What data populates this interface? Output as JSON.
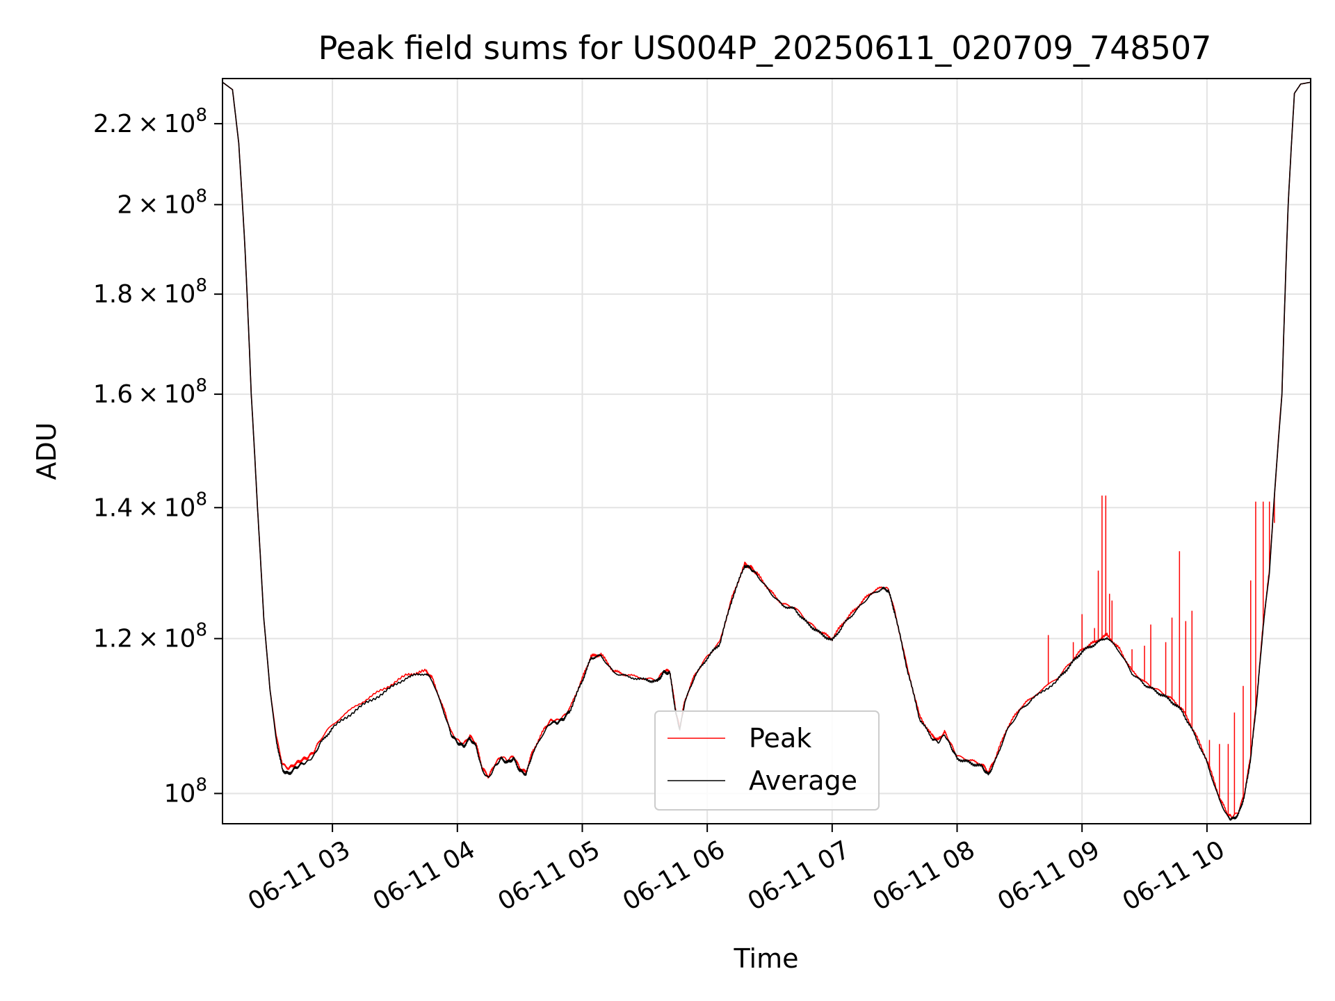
{
  "chart_data": {
    "type": "line",
    "title": "Peak field sums for US004P_20250611_020709_748507",
    "xlabel": "Time",
    "ylabel": "ADU",
    "x_axis": "time (hours on 2025-06-11)",
    "y_scale": "log",
    "xlim": [
      2.12,
      10.83
    ],
    "ylim": [
      96500000,
      232000000
    ],
    "grid": true,
    "legend_position": "lower-center",
    "x_ticks": [
      {
        "value": 3,
        "label": "06-11 03"
      },
      {
        "value": 4,
        "label": "06-11 04"
      },
      {
        "value": 5,
        "label": "06-11 05"
      },
      {
        "value": 6,
        "label": "06-11 06"
      },
      {
        "value": 7,
        "label": "06-11 07"
      },
      {
        "value": 8,
        "label": "06-11 08"
      },
      {
        "value": 9,
        "label": "06-11 09"
      },
      {
        "value": 10,
        "label": "06-11 10"
      }
    ],
    "y_ticks": [
      {
        "value": 100000000,
        "mantissa": "",
        "exponent": "8"
      },
      {
        "value": 120000000,
        "mantissa": "1.2",
        "exponent": "8"
      },
      {
        "value": 140000000,
        "mantissa": "1.4",
        "exponent": "8"
      },
      {
        "value": 160000000,
        "mantissa": "1.6",
        "exponent": "8"
      },
      {
        "value": 180000000,
        "mantissa": "1.8",
        "exponent": "8"
      },
      {
        "value": 200000000,
        "mantissa": "2",
        "exponent": "8"
      },
      {
        "value": 220000000,
        "mantissa": "2.2",
        "exponent": "8"
      }
    ],
    "series": [
      {
        "name": "Peak",
        "color": "#ff0000",
        "points": [
          [
            2.12,
            231000000
          ],
          [
            2.2,
            229000000
          ],
          [
            2.25,
            215000000
          ],
          [
            2.3,
            190000000
          ],
          [
            2.35,
            160000000
          ],
          [
            2.4,
            140000000
          ],
          [
            2.45,
            123000000
          ],
          [
            2.5,
            113000000
          ],
          [
            2.55,
            107000000
          ],
          [
            2.6,
            103500000
          ],
          [
            2.65,
            103000000
          ],
          [
            2.7,
            103500000
          ],
          [
            2.75,
            104000000
          ],
          [
            2.8,
            104300000
          ],
          [
            2.85,
            105000000
          ],
          [
            2.9,
            106500000
          ],
          [
            3.0,
            108500000
          ],
          [
            3.2,
            111000000
          ],
          [
            3.4,
            113000000
          ],
          [
            3.6,
            115000000
          ],
          [
            3.75,
            115500000
          ],
          [
            3.8,
            114500000
          ],
          [
            3.9,
            110000000
          ],
          [
            3.95,
            107500000
          ],
          [
            4.0,
            106500000
          ],
          [
            4.05,
            106000000
          ],
          [
            4.1,
            107000000
          ],
          [
            4.15,
            106000000
          ],
          [
            4.2,
            103000000
          ],
          [
            4.25,
            102000000
          ],
          [
            4.3,
            103500000
          ],
          [
            4.35,
            104500000
          ],
          [
            4.4,
            104000000
          ],
          [
            4.45,
            104500000
          ],
          [
            4.5,
            103000000
          ],
          [
            4.55,
            102500000
          ],
          [
            4.6,
            105000000
          ],
          [
            4.7,
            108000000
          ],
          [
            4.75,
            109000000
          ],
          [
            4.8,
            109000000
          ],
          [
            4.85,
            109500000
          ],
          [
            4.9,
            110500000
          ],
          [
            5.0,
            114500000
          ],
          [
            5.07,
            117500000
          ],
          [
            5.15,
            117800000
          ],
          [
            5.25,
            115500000
          ],
          [
            5.35,
            115000000
          ],
          [
            5.5,
            114500000
          ],
          [
            5.6,
            114300000
          ],
          [
            5.65,
            115500000
          ],
          [
            5.7,
            115500000
          ],
          [
            5.75,
            110000000
          ],
          [
            5.78,
            108000000
          ],
          [
            5.82,
            111500000
          ],
          [
            5.9,
            115000000
          ],
          [
            6.0,
            117500000
          ],
          [
            6.1,
            119500000
          ],
          [
            6.2,
            126000000
          ],
          [
            6.3,
            131000000
          ],
          [
            6.35,
            130500000
          ],
          [
            6.4,
            129500000
          ],
          [
            6.5,
            127000000
          ],
          [
            6.6,
            125000000
          ],
          [
            6.7,
            124500000
          ],
          [
            6.8,
            122500000
          ],
          [
            6.9,
            121000000
          ],
          [
            7.0,
            120000000
          ],
          [
            7.1,
            122500000
          ],
          [
            7.2,
            124500000
          ],
          [
            7.3,
            126500000
          ],
          [
            7.4,
            127500000
          ],
          [
            7.45,
            127200000
          ],
          [
            7.5,
            124000000
          ],
          [
            7.6,
            116000000
          ],
          [
            7.7,
            109500000
          ],
          [
            7.8,
            107000000
          ],
          [
            7.85,
            106500000
          ],
          [
            7.9,
            107500000
          ],
          [
            7.95,
            106000000
          ],
          [
            8.0,
            104500000
          ],
          [
            8.1,
            104000000
          ],
          [
            8.2,
            103500000
          ],
          [
            8.25,
            102500000
          ],
          [
            8.3,
            104000000
          ],
          [
            8.4,
            108000000
          ],
          [
            8.5,
            110500000
          ],
          [
            8.6,
            112000000
          ],
          [
            8.8,
            114500000
          ],
          [
            8.9,
            116500000
          ],
          [
            9.0,
            118500000
          ],
          [
            9.1,
            119500000
          ],
          [
            9.2,
            120500000
          ],
          [
            9.3,
            118500000
          ],
          [
            9.4,
            115500000
          ],
          [
            9.5,
            114000000
          ],
          [
            9.6,
            113000000
          ],
          [
            9.7,
            112000000
          ],
          [
            9.8,
            110500000
          ],
          [
            9.9,
            107500000
          ],
          [
            10.0,
            104000000
          ],
          [
            10.1,
            99500000
          ],
          [
            10.17,
            97500000
          ],
          [
            10.2,
            97300000
          ],
          [
            10.25,
            97800000
          ],
          [
            10.3,
            100000000
          ],
          [
            10.35,
            104500000
          ],
          [
            10.4,
            112000000
          ],
          [
            10.45,
            122000000
          ],
          [
            10.5,
            130000000
          ],
          [
            10.6,
            160000000
          ],
          [
            10.65,
            200000000
          ],
          [
            10.7,
            228000000
          ],
          [
            10.75,
            230500000
          ],
          [
            10.83,
            231000000
          ]
        ],
        "spikes": [
          {
            "x": 8.73,
            "top": 120500000
          },
          {
            "x": 8.93,
            "top": 119500000
          },
          {
            "x": 9.0,
            "top": 123500000
          },
          {
            "x": 9.1,
            "top": 121500000
          },
          {
            "x": 9.13,
            "top": 130000000
          },
          {
            "x": 9.16,
            "top": 142000000
          },
          {
            "x": 9.19,
            "top": 142000000
          },
          {
            "x": 9.22,
            "top": 126500000
          },
          {
            "x": 9.24,
            "top": 125500000
          },
          {
            "x": 9.4,
            "top": 118500000
          },
          {
            "x": 9.5,
            "top": 119000000
          },
          {
            "x": 9.55,
            "top": 122000000
          },
          {
            "x": 9.67,
            "top": 119500000
          },
          {
            "x": 9.72,
            "top": 123000000
          },
          {
            "x": 9.78,
            "top": 133000000
          },
          {
            "x": 9.83,
            "top": 122500000
          },
          {
            "x": 9.88,
            "top": 124000000
          },
          {
            "x": 10.02,
            "top": 106500000
          },
          {
            "x": 10.1,
            "top": 106000000
          },
          {
            "x": 10.17,
            "top": 106000000
          },
          {
            "x": 10.22,
            "top": 110000000
          },
          {
            "x": 10.29,
            "top": 113500000
          },
          {
            "x": 10.35,
            "top": 128500000
          },
          {
            "x": 10.39,
            "top": 141000000
          },
          {
            "x": 10.45,
            "top": 141000000
          },
          {
            "x": 10.5,
            "top": 141000000
          },
          {
            "x": 10.54,
            "top": 137500000
          }
        ]
      },
      {
        "name": "Average",
        "color": "#000000",
        "points": [
          [
            2.12,
            231000000
          ],
          [
            2.2,
            229000000
          ],
          [
            2.25,
            215000000
          ],
          [
            2.3,
            190000000
          ],
          [
            2.35,
            160000000
          ],
          [
            2.4,
            140000000
          ],
          [
            2.45,
            123000000
          ],
          [
            2.5,
            113000000
          ],
          [
            2.55,
            106500000
          ],
          [
            2.6,
            102800000
          ],
          [
            2.65,
            102300000
          ],
          [
            2.7,
            103000000
          ],
          [
            2.75,
            103500000
          ],
          [
            2.8,
            103800000
          ],
          [
            2.85,
            104500000
          ],
          [
            2.9,
            106000000
          ],
          [
            3.0,
            108000000
          ],
          [
            3.2,
            110500000
          ],
          [
            3.4,
            112500000
          ],
          [
            3.6,
            114700000
          ],
          [
            3.75,
            115200000
          ],
          [
            3.8,
            114200000
          ],
          [
            3.9,
            109700000
          ],
          [
            3.95,
            107200000
          ],
          [
            4.0,
            106200000
          ],
          [
            4.05,
            105700000
          ],
          [
            4.1,
            106700000
          ],
          [
            4.15,
            105700000
          ],
          [
            4.2,
            102700000
          ],
          [
            4.25,
            101800000
          ],
          [
            4.3,
            103200000
          ],
          [
            4.35,
            104200000
          ],
          [
            4.4,
            103700000
          ],
          [
            4.45,
            104200000
          ],
          [
            4.5,
            102700000
          ],
          [
            4.55,
            102300000
          ],
          [
            4.6,
            104700000
          ],
          [
            4.7,
            107700000
          ],
          [
            4.75,
            108700000
          ],
          [
            4.8,
            108700000
          ],
          [
            4.85,
            109200000
          ],
          [
            4.9,
            110200000
          ],
          [
            5.0,
            114200000
          ],
          [
            5.07,
            117300000
          ],
          [
            5.15,
            117600000
          ],
          [
            5.25,
            115300000
          ],
          [
            5.35,
            114800000
          ],
          [
            5.5,
            114300000
          ],
          [
            5.6,
            114100000
          ],
          [
            5.65,
            115300000
          ],
          [
            5.7,
            115300000
          ],
          [
            5.75,
            109800000
          ],
          [
            5.78,
            107800000
          ],
          [
            5.82,
            111300000
          ],
          [
            5.9,
            114800000
          ],
          [
            6.0,
            117300000
          ],
          [
            6.1,
            119300000
          ],
          [
            6.2,
            125800000
          ],
          [
            6.3,
            130800000
          ],
          [
            6.35,
            130300000
          ],
          [
            6.4,
            129300000
          ],
          [
            6.5,
            126800000
          ],
          [
            6.6,
            124800000
          ],
          [
            6.7,
            124200000
          ],
          [
            6.8,
            122200000
          ],
          [
            6.9,
            120800000
          ],
          [
            7.0,
            119700000
          ],
          [
            7.1,
            122200000
          ],
          [
            7.2,
            124200000
          ],
          [
            7.3,
            126200000
          ],
          [
            7.4,
            127300000
          ],
          [
            7.45,
            127000000
          ],
          [
            7.5,
            123800000
          ],
          [
            7.6,
            115800000
          ],
          [
            7.7,
            109200000
          ],
          [
            7.8,
            106700000
          ],
          [
            7.85,
            106200000
          ],
          [
            7.9,
            107200000
          ],
          [
            7.95,
            105700000
          ],
          [
            8.0,
            104200000
          ],
          [
            8.1,
            103700000
          ],
          [
            8.2,
            103200000
          ],
          [
            8.25,
            102200000
          ],
          [
            8.3,
            103700000
          ],
          [
            8.4,
            107700000
          ],
          [
            8.5,
            110200000
          ],
          [
            8.6,
            111700000
          ],
          [
            8.8,
            114200000
          ],
          [
            8.9,
            116200000
          ],
          [
            9.0,
            118200000
          ],
          [
            9.1,
            119200000
          ],
          [
            9.2,
            120200000
          ],
          [
            9.3,
            118200000
          ],
          [
            9.4,
            115200000
          ],
          [
            9.5,
            113700000
          ],
          [
            9.6,
            112700000
          ],
          [
            9.7,
            111700000
          ],
          [
            9.8,
            110200000
          ],
          [
            9.9,
            107200000
          ],
          [
            10.0,
            103700000
          ],
          [
            10.1,
            99200000
          ],
          [
            10.17,
            97200000
          ],
          [
            10.2,
            97000000
          ],
          [
            10.25,
            97500000
          ],
          [
            10.3,
            99700000
          ],
          [
            10.35,
            104200000
          ],
          [
            10.4,
            111700000
          ],
          [
            10.45,
            121700000
          ],
          [
            10.5,
            129800000
          ],
          [
            10.6,
            160000000
          ],
          [
            10.65,
            200000000
          ],
          [
            10.7,
            228000000
          ],
          [
            10.75,
            230500000
          ],
          [
            10.83,
            231000000
          ]
        ]
      }
    ]
  }
}
